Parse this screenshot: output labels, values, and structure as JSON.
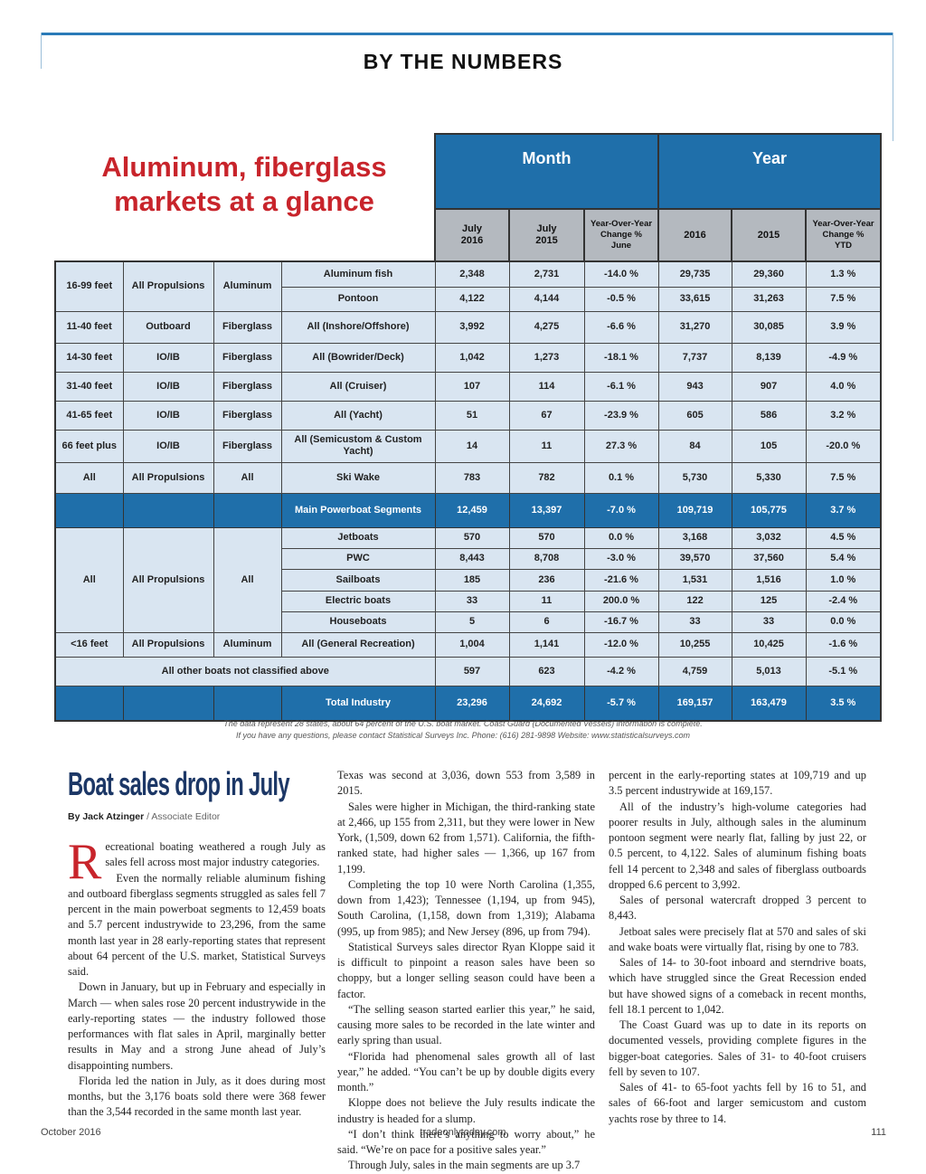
{
  "header": {
    "section": "BY THE NUMBERS"
  },
  "table": {
    "title": "Aluminum, fiberglass markets at a glance",
    "groups": [
      "Month",
      "Year"
    ],
    "columns": [
      [
        "July",
        "2016"
      ],
      [
        "July",
        "2015"
      ],
      [
        "Year-Over-Year",
        "Change %",
        "June"
      ],
      [
        "2016"
      ],
      [
        "2015"
      ],
      [
        "Year-Over-Year",
        "Change %",
        "YTD"
      ]
    ],
    "rows": [
      {
        "size": "16-99 feet",
        "propulsion": "All Propulsions",
        "material": "Aluminum",
        "segments": [
          {
            "segment": "Aluminum fish",
            "values": [
              "2,348",
              "2,731",
              "-14.0 %",
              "29,735",
              "29,360",
              "1.3 %"
            ]
          },
          {
            "segment": "Pontoon",
            "values": [
              "4,122",
              "4,144",
              "-0.5 %",
              "33,615",
              "31,263",
              "7.5 %"
            ]
          }
        ]
      },
      {
        "size": "11-40 feet",
        "propulsion": "Outboard",
        "material": "Fiberglass",
        "segments": [
          {
            "segment": "All (Inshore/Offshore)",
            "values": [
              "3,992",
              "4,275",
              "-6.6 %",
              "31,270",
              "30,085",
              "3.9 %"
            ]
          }
        ]
      },
      {
        "size": "14-30 feet",
        "propulsion": "IO/IB",
        "material": "Fiberglass",
        "segments": [
          {
            "segment": "All (Bowrider/Deck)",
            "values": [
              "1,042",
              "1,273",
              "-18.1 %",
              "7,737",
              "8,139",
              "-4.9 %"
            ]
          }
        ]
      },
      {
        "size": "31-40 feet",
        "propulsion": "IO/IB",
        "material": "Fiberglass",
        "segments": [
          {
            "segment": "All (Cruiser)",
            "values": [
              "107",
              "114",
              "-6.1 %",
              "943",
              "907",
              "4.0 %"
            ]
          }
        ]
      },
      {
        "size": "41-65 feet",
        "propulsion": "IO/IB",
        "material": "Fiberglass",
        "segments": [
          {
            "segment": "All (Yacht)",
            "values": [
              "51",
              "67",
              "-23.9 %",
              "605",
              "586",
              "3.2 %"
            ]
          }
        ]
      },
      {
        "size": "66 feet plus",
        "propulsion": "IO/IB",
        "material": "Fiberglass",
        "segments": [
          {
            "segment": "All (Semicustom & Custom Yacht)",
            "values": [
              "14",
              "11",
              "27.3 %",
              "84",
              "105",
              "-20.0 %"
            ]
          }
        ]
      },
      {
        "size": "All",
        "propulsion": "All Propulsions",
        "material": "All",
        "segments": [
          {
            "segment": "Ski Wake",
            "values": [
              "783",
              "782",
              "0.1 %",
              "5,730",
              "5,330",
              "7.5 %"
            ]
          }
        ]
      },
      {
        "segments": [
          {
            "segment": "Main Powerboat Segments",
            "values": [
              "12,459",
              "13,397",
              "-7.0 %",
              "109,719",
              "105,775",
              "3.7 %"
            ]
          }
        ]
      },
      {
        "size": "All",
        "propulsion": "All Propulsions",
        "material": "All",
        "segments": [
          {
            "segment": "Jetboats",
            "values": [
              "570",
              "570",
              "0.0 %",
              "3,168",
              "3,032",
              "4.5 %"
            ]
          },
          {
            "segment": "PWC",
            "values": [
              "8,443",
              "8,708",
              "-3.0 %",
              "39,570",
              "37,560",
              "5.4 %"
            ]
          },
          {
            "segment": "Sailboats",
            "values": [
              "185",
              "236",
              "-21.6 %",
              "1,531",
              "1,516",
              "1.0 %"
            ]
          },
          {
            "segment": "Electric boats",
            "values": [
              "33",
              "11",
              "200.0 %",
              "122",
              "125",
              "-2.4 %"
            ]
          },
          {
            "segment": "Houseboats",
            "values": [
              "5",
              "6",
              "-16.7 %",
              "33",
              "33",
              "0.0 %"
            ]
          }
        ]
      },
      {
        "size": "<16 feet",
        "propulsion": "All Propulsions",
        "material": "Aluminum",
        "segments": [
          {
            "segment": "All (General Recreation)",
            "values": [
              "1,004",
              "1,141",
              "-12.0 %",
              "10,255",
              "10,425",
              "-1.6 %"
            ]
          }
        ]
      },
      {
        "label": "All other boats not classified above",
        "segments": [
          {
            "values": [
              "597",
              "623",
              "-4.2 %",
              "4,759",
              "5,013",
              "-5.1 %"
            ]
          }
        ]
      },
      {
        "segments": [
          {
            "segment": "Total Industry",
            "values": [
              "23,296",
              "24,692",
              "-5.7 %",
              "169,157",
              "163,479",
              "3.5 %"
            ]
          }
        ]
      }
    ],
    "note": [
      "The data represent 28 states, about 64 percent of the U.S. boat market. Coast Guard (Documented Vessels) information is complete.",
      "If you have any questions, please contact Statistical Surveys Inc. Phone: (616) 281-9898 Website: www.statisticalsurveys.com"
    ]
  },
  "article": {
    "title": "Boat sales drop in July",
    "byline": {
      "author": "By Jack Atzinger",
      "role": "/ Associate Editor"
    },
    "columns": [
      [
        "Recreational boating weathered a rough July as sales fell across most major industry categories.",
        "Even the normally reliable aluminum fishing and outboard fiberglass segments struggled as sales fell 7 percent in the main powerboat segments to 12,459 boats and 5.7 percent industrywide to 23,296, from the same month last year in 28 early-reporting states that represent about 64 percent of the U.S. market, Statistical Surveys said.",
        "Down in January, but up in February and especially in March — when sales rose 20 percent industrywide in the early-reporting states — the industry followed those performances with flat sales in April, marginally better results in May and a strong June ahead of July’s disappointing numbers.",
        "Florida led the nation in July, as it does during most months, but the 3,176 boats sold there were 368 fewer than the 3,544 recorded in the same month last year."
      ],
      [
        "Texas was second at 3,036, down 553 from 3,589 in 2015.",
        "Sales were higher in Michigan, the third-ranking state at 2,466, up 155 from 2,311, but they were lower in New York, (1,509, down 62 from 1,571). California, the fifth-ranked state, had higher sales — 1,366, up 167 from 1,199.",
        "Completing the top 10 were North Carolina (1,355, down from 1,423); Tennessee (1,194, up from 945), South Carolina, (1,158, down from 1,319); Alabama (995, up from 985); and New Jersey (896, up from 794).",
        "Statistical Surveys sales director Ryan Kloppe said it is difficult to pinpoint a reason sales have been so choppy, but a longer selling season could have been a factor.",
        "“The selling season started earlier this year,” he said, causing more sales to be recorded in the late winter and early spring than usual.",
        "“Florida had phenomenal sales growth all of last year,” he added. “You can’t be up by double digits every month.”",
        "Kloppe does not believe the July results indicate the industry is headed for a slump.",
        "“I don’t think there’s anything to worry about,” he said. “We’re on pace for a positive sales year.”",
        "Through July, sales in the main segments are up 3.7"
      ],
      [
        "percent in the early-reporting states at 109,719 and up 3.5 percent industrywide at 169,157.",
        "All of the industry’s high-volume categories had poorer results in July, although sales in the aluminum pontoon segment were nearly flat, falling by just 22, or 0.5 percent, to 4,122. Sales of aluminum fishing boats fell 14 percent to 2,348 and sales of fiberglass outboards dropped 6.6 percent to 3,992.",
        "Sales of personal watercraft dropped 3 percent to 8,443.",
        "Jetboat sales were precisely flat at 570 and sales of ski and wake boats were virtually flat, rising by one to 783.",
        "Sales of 14- to 30-foot inboard and sterndrive boats, which have struggled since the Great Recession ended but have showed signs of a comeback in recent months, fell 18.1 percent to 1,042.",
        "The Coast Guard was up to date in its reports on documented vessels, providing complete figures in the bigger-boat categories. Sales of 31- to 40-foot cruisers fell by seven to 107.",
        "Sales of 41- to 65-foot yachts fell by 16 to 51, and sales of 66-foot and larger semicustom and custom yachts rose by three to 14."
      ]
    ]
  },
  "footer": {
    "left": "October 2016",
    "center": "tradeonlytoday.com",
    "right": "111"
  }
}
